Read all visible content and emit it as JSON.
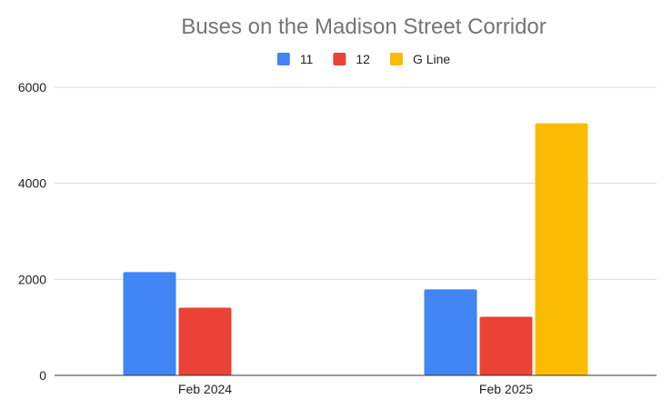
{
  "chart_data": {
    "type": "bar",
    "title": "Buses on the Madison Street Corridor",
    "xlabel": "",
    "ylabel": "",
    "categories": [
      "Feb 2024",
      "Feb 2025"
    ],
    "series": [
      {
        "name": "11",
        "color": "#4285f4",
        "values": [
          2150,
          1790
        ]
      },
      {
        "name": "12",
        "color": "#ea4335",
        "values": [
          1410,
          1220
        ]
      },
      {
        "name": "G Line",
        "color": "#fbbc04",
        "values": [
          null,
          5250
        ]
      }
    ],
    "ylim": [
      0,
      6000
    ],
    "yticks": [
      0,
      2000,
      4000,
      6000
    ],
    "grid": true,
    "legend_position": "top"
  }
}
